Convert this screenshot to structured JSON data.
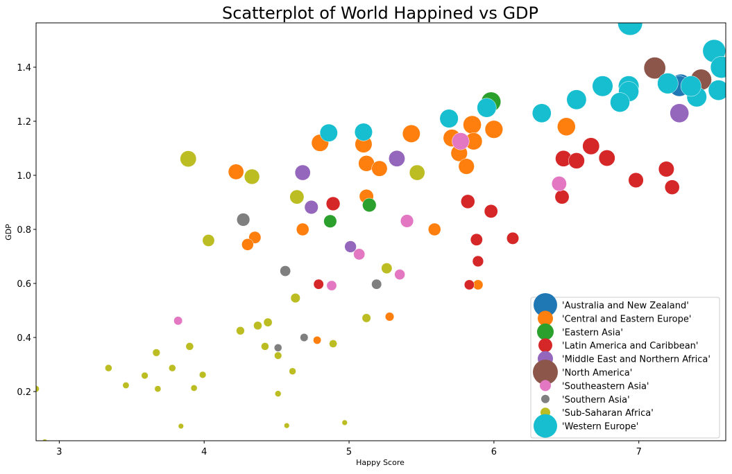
{
  "chart_data": {
    "type": "scatter",
    "title": "Scatterplot of World Happined vs GDP",
    "xlabel": "Happy Score",
    "ylabel": "GDP",
    "xlim": [
      2.84,
      7.6
    ],
    "ylim": [
      0.018,
      1.564
    ],
    "xticks": [
      "3",
      "4",
      "5",
      "6",
      "7"
    ],
    "xtick_values": [
      3,
      4,
      5,
      6,
      7
    ],
    "yticks": [
      "0.2",
      "0.4",
      "0.6",
      "0.8",
      "1.0",
      "1.2",
      "1.4"
    ],
    "ytick_values": [
      0.2,
      0.4,
      0.6,
      0.8,
      1.0,
      1.2,
      1.4
    ],
    "grid": false,
    "marker_size_encoding": "larger markers for higher GDP",
    "legend_placement": "lower-right",
    "series": [
      {
        "name": "'Australia and New Zealand'",
        "color": "#1f77b4",
        "points": [
          [
            7.29,
            1.336
          ],
          [
            7.28,
            1.33
          ]
        ]
      },
      {
        "name": "'Central and Eastern Europe'",
        "color": "#ff7f0e",
        "points": [
          [
            5.85,
            1.187
          ],
          [
            5.71,
            1.138
          ],
          [
            5.76,
            1.082
          ],
          [
            5.81,
            1.033
          ],
          [
            5.86,
            1.126
          ],
          [
            6.0,
            1.17
          ],
          [
            6.5,
            1.18
          ],
          [
            5.59,
            0.8
          ],
          [
            5.89,
            0.595
          ],
          [
            4.8,
            1.12
          ],
          [
            5.1,
            1.115
          ],
          [
            5.43,
            1.154
          ],
          [
            5.12,
            1.044
          ],
          [
            5.21,
            1.025
          ],
          [
            4.22,
            1.013
          ],
          [
            5.12,
            0.922
          ],
          [
            4.68,
            0.8
          ],
          [
            4.35,
            0.77
          ],
          [
            4.3,
            0.744
          ],
          [
            5.28,
            0.477
          ],
          [
            4.78,
            0.39
          ]
        ]
      },
      {
        "name": "'Eastern Asia'",
        "color": "#2ca02c",
        "points": [
          [
            5.98,
            1.272
          ],
          [
            5.14,
            0.89
          ],
          [
            4.87,
            0.83
          ]
        ]
      },
      {
        "name": "'Latin America and Caribbean'",
        "color": "#d62728",
        "points": [
          [
            6.67,
            1.108
          ],
          [
            6.48,
            1.062
          ],
          [
            6.57,
            1.054
          ],
          [
            6.78,
            1.064
          ],
          [
            7.19,
            1.023
          ],
          [
            7.23,
            0.956
          ],
          [
            6.98,
            0.982
          ],
          [
            6.47,
            0.92
          ],
          [
            5.82,
            0.903
          ],
          [
            5.98,
            0.867
          ],
          [
            5.88,
            0.762
          ],
          [
            6.13,
            0.767
          ],
          [
            5.89,
            0.682
          ],
          [
            5.83,
            0.595
          ],
          [
            4.89,
            0.895
          ],
          [
            4.79,
            0.597
          ]
        ]
      },
      {
        "name": "'Middle East and Northern Africa'",
        "color": "#9467bd",
        "points": [
          [
            7.28,
            1.23
          ],
          [
            5.33,
            1.062
          ],
          [
            4.68,
            1.01
          ],
          [
            4.74,
            0.882
          ],
          [
            5.01,
            0.736
          ]
        ]
      },
      {
        "name": "'North America'",
        "color": "#8c564b",
        "points": [
          [
            7.11,
            1.397
          ],
          [
            7.43,
            1.354
          ]
        ]
      },
      {
        "name": "'Southeastern Asia'",
        "color": "#e377c2",
        "points": [
          [
            5.77,
            1.126
          ],
          [
            6.45,
            0.969
          ],
          [
            5.4,
            0.831
          ],
          [
            5.07,
            0.708
          ],
          [
            5.35,
            0.633
          ],
          [
            4.88,
            0.592
          ],
          [
            3.82,
            0.462
          ]
        ]
      },
      {
        "name": "'Southern Asia'",
        "color": "#7f7f7f",
        "points": [
          [
            4.27,
            0.836
          ],
          [
            4.56,
            0.646
          ],
          [
            5.19,
            0.597
          ],
          [
            4.69,
            0.4
          ],
          [
            4.51,
            0.362
          ]
        ]
      },
      {
        "name": "'Sub-Saharan Africa'",
        "color": "#bcbd22",
        "points": [
          [
            3.89,
            1.061
          ],
          [
            4.33,
            0.995
          ],
          [
            4.64,
            0.92
          ],
          [
            5.47,
            1.01
          ],
          [
            4.03,
            0.759
          ],
          [
            5.26,
            0.656
          ],
          [
            4.63,
            0.546
          ],
          [
            4.37,
            0.444
          ],
          [
            4.44,
            0.456
          ],
          [
            4.25,
            0.425
          ],
          [
            5.12,
            0.472
          ],
          [
            4.89,
            0.377
          ],
          [
            4.42,
            0.367
          ],
          [
            3.9,
            0.367
          ],
          [
            3.67,
            0.344
          ],
          [
            4.51,
            0.333
          ],
          [
            3.34,
            0.287
          ],
          [
            3.78,
            0.287
          ],
          [
            3.99,
            0.262
          ],
          [
            3.59,
            0.259
          ],
          [
            3.46,
            0.223
          ],
          [
            3.93,
            0.213
          ],
          [
            3.68,
            0.21
          ],
          [
            2.84,
            0.21
          ],
          [
            4.61,
            0.275
          ],
          [
            4.51,
            0.192
          ],
          [
            3.84,
            0.072
          ],
          [
            4.57,
            0.074
          ],
          [
            4.97,
            0.085
          ],
          [
            2.9,
            0.015
          ]
        ]
      },
      {
        "name": "'Western Europe'",
        "color": "#17becf",
        "points": [
          [
            6.94,
            1.564
          ],
          [
            7.52,
            1.46
          ],
          [
            7.57,
            1.4
          ],
          [
            7.55,
            1.315
          ],
          [
            7.4,
            1.29
          ],
          [
            7.36,
            1.33
          ],
          [
            7.2,
            1.34
          ],
          [
            6.93,
            1.33
          ],
          [
            6.93,
            1.31
          ],
          [
            6.75,
            1.33
          ],
          [
            6.87,
            1.27
          ],
          [
            6.57,
            1.28
          ],
          [
            6.33,
            1.23
          ],
          [
            5.95,
            1.25
          ],
          [
            5.69,
            1.21
          ],
          [
            5.1,
            1.16
          ],
          [
            4.86,
            1.157
          ]
        ]
      }
    ]
  }
}
